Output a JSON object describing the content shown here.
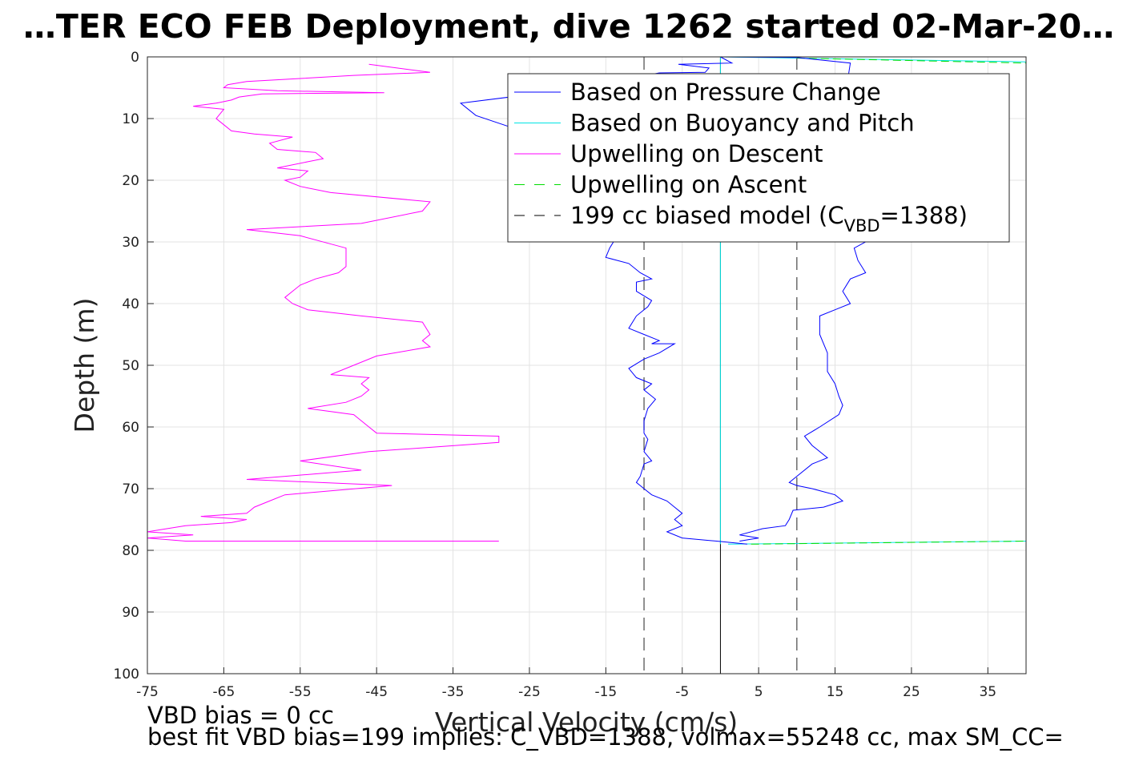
{
  "chart_data": {
    "type": "line",
    "title": "…TER ECO FEB Deployment, dive 1262 started 02-Mar-20…",
    "xlabel": "Vertical Velocity (cm/s)",
    "ylabel": "Depth (m)",
    "xlim": [
      -75,
      40
    ],
    "ylim": [
      0,
      100
    ],
    "y_reversed": true,
    "grid": true,
    "xticks": [
      -75,
      -65,
      -55,
      -45,
      -35,
      -25,
      -15,
      -5,
      5,
      15,
      25,
      35
    ],
    "yticks": [
      0,
      10,
      20,
      30,
      40,
      50,
      60,
      70,
      80,
      90,
      100
    ],
    "legend_position": "top-right",
    "series": [
      {
        "name": "Based on Pressure Change",
        "color": "#0000ff",
        "style": "solid",
        "descent": [
          [
            0,
            0
          ],
          [
            1.5,
            1
          ],
          [
            -5.5,
            1.2
          ],
          [
            -1.5,
            1.8
          ],
          [
            -2,
            2.5
          ],
          [
            -8,
            2.6
          ],
          [
            -14,
            4
          ],
          [
            -21,
            5.5
          ],
          [
            -34,
            7.5
          ],
          [
            -32,
            9.5
          ],
          [
            -26,
            12
          ],
          [
            -13,
            14
          ],
          [
            -11,
            17
          ],
          [
            -11.5,
            20
          ],
          [
            -12,
            24
          ],
          [
            -13,
            28
          ],
          [
            -14.5,
            31
          ],
          [
            -15,
            32.5
          ],
          [
            -12,
            33.5
          ],
          [
            -10.5,
            35
          ],
          [
            -9,
            36
          ],
          [
            -11,
            36.5
          ],
          [
            -11,
            38
          ],
          [
            -9,
            39.5
          ],
          [
            -9.5,
            40.5
          ],
          [
            -11,
            42
          ],
          [
            -12,
            44
          ],
          [
            -10,
            45
          ],
          [
            -8,
            46
          ],
          [
            -9,
            46.5
          ],
          [
            -6,
            46.5
          ],
          [
            -8,
            48
          ],
          [
            -10,
            49
          ],
          [
            -12,
            50.5
          ],
          [
            -11,
            52
          ],
          [
            -9,
            53
          ],
          [
            -10,
            54
          ],
          [
            -8.5,
            55.5
          ],
          [
            -9.5,
            57
          ],
          [
            -10,
            59
          ],
          [
            -10,
            61
          ],
          [
            -9.5,
            62
          ],
          [
            -10,
            64
          ],
          [
            -9,
            65.5
          ],
          [
            -10,
            66
          ],
          [
            -10.5,
            68
          ],
          [
            -11,
            69
          ],
          [
            -10,
            70
          ],
          [
            -9,
            71
          ],
          [
            -7,
            72
          ],
          [
            -6,
            73
          ],
          [
            -5,
            74
          ],
          [
            -6,
            75
          ],
          [
            -5,
            76
          ],
          [
            -7,
            77
          ],
          [
            -5,
            78
          ],
          [
            -0.5,
            78.5
          ],
          [
            3.5,
            79
          ]
        ],
        "ascent": [
          [
            0,
            0
          ],
          [
            10,
            0.1
          ],
          [
            17,
            1
          ],
          [
            16.5,
            5
          ],
          [
            17.5,
            10
          ],
          [
            18,
            16
          ],
          [
            17,
            22
          ],
          [
            19,
            26
          ],
          [
            19,
            30
          ],
          [
            17.5,
            31
          ],
          [
            18,
            33
          ],
          [
            19,
            35
          ],
          [
            17,
            36
          ],
          [
            16,
            38
          ],
          [
            17,
            40
          ],
          [
            15,
            41
          ],
          [
            13,
            42
          ],
          [
            13,
            45
          ],
          [
            14,
            48
          ],
          [
            14,
            51
          ],
          [
            15,
            53
          ],
          [
            15.5,
            55
          ],
          [
            16,
            56.5
          ],
          [
            15.5,
            58
          ],
          [
            13,
            60
          ],
          [
            11,
            61.5
          ],
          [
            12,
            63
          ],
          [
            14,
            65
          ],
          [
            12,
            66
          ],
          [
            10,
            68
          ],
          [
            9,
            69
          ],
          [
            10,
            69.5
          ],
          [
            12,
            70
          ],
          [
            15,
            71
          ],
          [
            16,
            72
          ],
          [
            13.5,
            73
          ],
          [
            9.5,
            73.5
          ],
          [
            9,
            75
          ],
          [
            8.5,
            76
          ],
          [
            5.5,
            76.5
          ],
          [
            2.5,
            77.5
          ],
          [
            5,
            78
          ],
          [
            2.5,
            78.5
          ]
        ]
      },
      {
        "name": "Based on Buoyancy and Pitch",
        "color": "#00e5e5",
        "style": "solid",
        "descent": [
          [
            0,
            0
          ],
          [
            40,
            0.8
          ]
        ],
        "ascent": [
          [
            0,
            0
          ],
          [
            0,
            79
          ]
        ],
        "bottom": [
          [
            1,
            79
          ],
          [
            40,
            78.5
          ]
        ]
      },
      {
        "name": "Upwelling on Descent",
        "color": "#ff00ff",
        "style": "solid",
        "points": [
          [
            -46,
            1.2
          ],
          [
            -38,
            2.5
          ],
          [
            -48,
            3
          ],
          [
            -55,
            3.5
          ],
          [
            -62,
            4
          ],
          [
            -64.5,
            4.5
          ],
          [
            -65,
            5
          ],
          [
            -58,
            5.5
          ],
          [
            -44,
            5.8
          ],
          [
            -60,
            6
          ],
          [
            -63,
            6.5
          ],
          [
            -64,
            7
          ],
          [
            -66,
            7.5
          ],
          [
            -69,
            8
          ],
          [
            -65,
            8.5
          ],
          [
            -66,
            10
          ],
          [
            -65,
            11
          ],
          [
            -64,
            12
          ],
          [
            -61,
            12.5
          ],
          [
            -56,
            13
          ],
          [
            -59,
            14
          ],
          [
            -58,
            15
          ],
          [
            -53,
            15.5
          ],
          [
            -52,
            16.5
          ],
          [
            -54,
            17
          ],
          [
            -58,
            18
          ],
          [
            -54,
            18.5
          ],
          [
            -55,
            19.5
          ],
          [
            -57,
            20
          ],
          [
            -55,
            21
          ],
          [
            -51,
            22
          ],
          [
            -38,
            23.5
          ],
          [
            -39,
            25
          ],
          [
            -47,
            27
          ],
          [
            -62,
            28
          ],
          [
            -55,
            29
          ],
          [
            -49,
            31
          ],
          [
            -49,
            33
          ],
          [
            -49,
            34
          ],
          [
            -50,
            35
          ],
          [
            -53,
            36
          ],
          [
            -55,
            37
          ],
          [
            -56,
            38
          ],
          [
            -57,
            39
          ],
          [
            -56,
            40
          ],
          [
            -54,
            41
          ],
          [
            -47,
            42
          ],
          [
            -39,
            43
          ],
          [
            -38,
            45
          ],
          [
            -39,
            46
          ],
          [
            -38,
            47
          ],
          [
            -45,
            48.5
          ],
          [
            -51,
            51.5
          ],
          [
            -46,
            52
          ],
          [
            -47,
            53
          ],
          [
            -46,
            54
          ],
          [
            -47,
            55
          ],
          [
            -49,
            56
          ],
          [
            -54,
            57
          ],
          [
            -48,
            58
          ],
          [
            -46,
            60
          ],
          [
            -45,
            61
          ],
          [
            -29,
            61.5
          ],
          [
            -29,
            62.5
          ],
          [
            -46,
            64
          ],
          [
            -55,
            65.5
          ],
          [
            -47,
            67
          ],
          [
            -62,
            68.5
          ],
          [
            -43,
            69.5
          ],
          [
            -57,
            71
          ],
          [
            -59,
            72
          ],
          [
            -61,
            73
          ],
          [
            -61.5,
            73.5
          ],
          [
            -62,
            74
          ],
          [
            -68,
            74.5
          ],
          [
            -62,
            75
          ],
          [
            -64,
            75.5
          ],
          [
            -70,
            76
          ],
          [
            -75,
            77
          ],
          [
            -69,
            77.5
          ],
          [
            -75,
            78
          ],
          [
            -70,
            78.5
          ],
          [
            -29,
            78.5
          ]
        ]
      },
      {
        "name": "Upwelling on Ascent",
        "color": "#00dd00",
        "style": "dashed",
        "segments": [
          [
            [
              10,
              0.2
            ],
            [
              40,
              1
            ]
          ],
          [
            [
              4,
              79
            ],
            [
              40,
              78.5
            ]
          ]
        ]
      },
      {
        "name": "199 cc biased model (C_VBD=1388)",
        "color": "#000000",
        "style": "dashed",
        "lines_x": [
          -10,
          10
        ]
      }
    ],
    "zero_line_x": 0,
    "legend_label_main": "199 cc biased model (C",
    "legend_label_sub": "VBD",
    "legend_label_end": "=1388)",
    "notes": [
      "VBD bias = 0 cc",
      "best fit VBD bias=199 implies: C_VBD=1388, volmax=55248 cc, max SM_CC="
    ]
  }
}
